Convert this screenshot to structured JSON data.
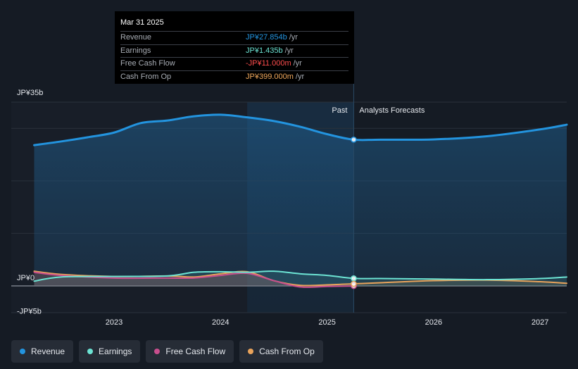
{
  "tooltip": {
    "date": "Mar 31 2025",
    "rows": [
      {
        "label": "Revenue",
        "value": "JP¥27.854b",
        "unit": "/yr",
        "color": "#2394df"
      },
      {
        "label": "Earnings",
        "value": "JP¥1.435b",
        "unit": "/yr",
        "color": "#6ce3d3"
      },
      {
        "label": "Free Cash Flow",
        "value": "-JP¥11.000m",
        "unit": "/yr",
        "color": "#ff4d4d"
      },
      {
        "label": "Cash From Op",
        "value": "JP¥399.000m",
        "unit": "/yr",
        "color": "#f0a85c"
      }
    ]
  },
  "legend": [
    {
      "label": "Revenue",
      "color": "#2394df"
    },
    {
      "label": "Earnings",
      "color": "#6ce3d3"
    },
    {
      "label": "Free Cash Flow",
      "color": "#c84e8d"
    },
    {
      "label": "Cash From Op",
      "color": "#e9a35b"
    }
  ],
  "region_labels": {
    "past": "Past",
    "forecast": "Analysts Forecasts"
  },
  "chart_data": {
    "type": "line",
    "title": "",
    "xlabel": "",
    "ylabel": "",
    "xlim": [
      2022.22,
      2027.25
    ],
    "ylim": [
      -5,
      35
    ],
    "divider_x": 2025.25,
    "y_ticks": [
      {
        "value": 35,
        "label": "JP¥35b"
      },
      {
        "value": 0,
        "label": "JP¥0"
      },
      {
        "value": -5,
        "label": "-JP¥5b"
      }
    ],
    "x_ticks": [
      {
        "value": 2023,
        "label": "2023"
      },
      {
        "value": 2024,
        "label": "2024"
      },
      {
        "value": 2025,
        "label": "2025"
      },
      {
        "value": 2026,
        "label": "2026"
      },
      {
        "value": 2027,
        "label": "2027"
      }
    ],
    "series": [
      {
        "name": "Revenue",
        "color": "#2394df",
        "width": 3,
        "fill": true,
        "x": [
          2022.25,
          2022.5,
          2022.75,
          2023.0,
          2023.25,
          2023.5,
          2023.75,
          2024.0,
          2024.25,
          2024.5,
          2024.75,
          2025.0,
          2025.25,
          2025.5,
          2026.0,
          2026.5,
          2027.0,
          2027.25
        ],
        "values": [
          26.8,
          27.5,
          28.3,
          29.2,
          31.0,
          31.5,
          32.3,
          32.6,
          32.1,
          31.4,
          30.3,
          28.9,
          27.854,
          27.85,
          27.9,
          28.5,
          29.8,
          30.7
        ]
      },
      {
        "name": "Earnings",
        "color": "#6ce3d3",
        "width": 2,
        "fill": false,
        "x": [
          2022.25,
          2022.5,
          2023.0,
          2023.5,
          2023.75,
          2024.0,
          2024.25,
          2024.5,
          2024.75,
          2025.0,
          2025.25,
          2025.5,
          2026.0,
          2026.5,
          2027.0,
          2027.25
        ],
        "values": [
          0.9,
          1.7,
          1.8,
          1.9,
          2.6,
          2.7,
          2.6,
          2.8,
          2.3,
          2.0,
          1.435,
          1.4,
          1.3,
          1.2,
          1.4,
          1.7
        ]
      },
      {
        "name": "Free Cash Flow",
        "color": "#c84e8d",
        "width": 2,
        "fill": false,
        "x": [
          2022.25,
          2022.5,
          2023.0,
          2023.5,
          2023.75,
          2024.0,
          2024.25,
          2024.5,
          2024.75,
          2025.0,
          2025.25
        ],
        "values": [
          2.6,
          2.0,
          1.5,
          1.5,
          1.5,
          2.0,
          2.4,
          1.0,
          -0.2,
          -0.1,
          -0.011
        ]
      },
      {
        "name": "Cash From Op",
        "color": "#e9a35b",
        "width": 2,
        "fill": false,
        "x": [
          2022.25,
          2022.5,
          2023.0,
          2023.5,
          2023.75,
          2024.0,
          2024.25,
          2024.5,
          2024.75,
          2025.0,
          2025.25,
          2025.5,
          2026.0,
          2026.5,
          2027.0,
          2027.25
        ],
        "values": [
          2.8,
          2.2,
          1.8,
          1.9,
          1.7,
          2.3,
          2.7,
          1.0,
          0.1,
          0.2,
          0.399,
          0.6,
          1.0,
          1.1,
          0.8,
          0.5
        ]
      }
    ],
    "tooltip_points": [
      {
        "series": "Revenue",
        "x": 2025.25,
        "y": 27.854
      },
      {
        "series": "Earnings",
        "x": 2025.25,
        "y": 1.435
      },
      {
        "series": "Free Cash Flow",
        "x": 2025.25,
        "y": -0.011
      },
      {
        "series": "Cash From Op",
        "x": 2025.25,
        "y": 0.399
      }
    ]
  }
}
